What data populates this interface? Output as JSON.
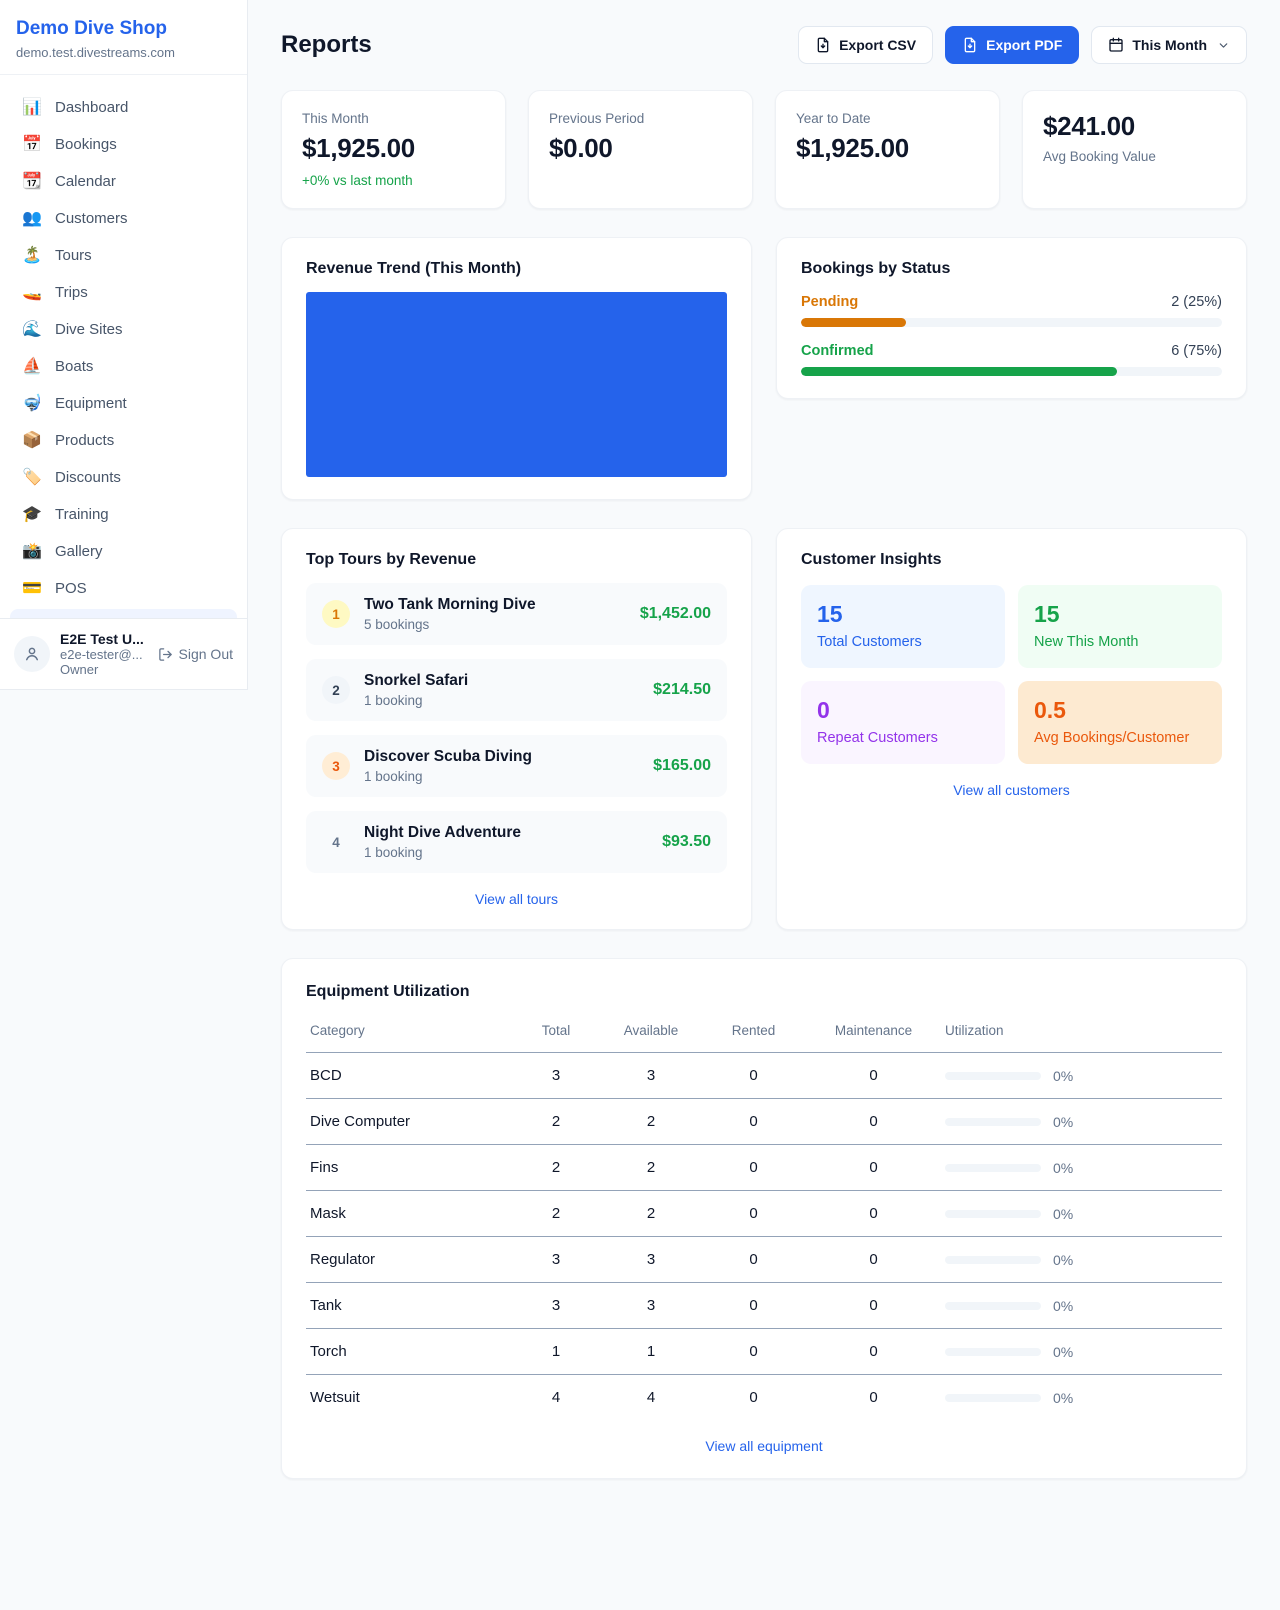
{
  "colors": {
    "primary": "#2563eb",
    "green": "#16a34a",
    "orange_pending": "#d97706",
    "orange_deep": "#ea580c",
    "purple": "#9333ea",
    "page_bg": "#f8fafc"
  },
  "sidebar": {
    "brand": {
      "title": "Demo Dive Shop",
      "domain": "demo.test.divestreams.com"
    },
    "nav": [
      {
        "icon": "📊",
        "label": "Dashboard"
      },
      {
        "icon": "📅",
        "label": "Bookings"
      },
      {
        "icon": "📆",
        "label": "Calendar"
      },
      {
        "icon": "👥",
        "label": "Customers"
      },
      {
        "icon": "🏝️",
        "label": "Tours"
      },
      {
        "icon": "🚤",
        "label": "Trips"
      },
      {
        "icon": "🌊",
        "label": "Dive Sites"
      },
      {
        "icon": "⛵",
        "label": "Boats"
      },
      {
        "icon": "🤿",
        "label": "Equipment"
      },
      {
        "icon": "📦",
        "label": "Products"
      },
      {
        "icon": "🏷️",
        "label": "Discounts"
      },
      {
        "icon": "🎓",
        "label": "Training"
      },
      {
        "icon": "📸",
        "label": "Gallery"
      },
      {
        "icon": "💳",
        "label": "POS"
      }
    ],
    "user": {
      "name": "E2E Test U...",
      "email": "e2e-tester@...",
      "role": "Owner",
      "sign_out": "Sign Out"
    }
  },
  "header": {
    "title": "Reports",
    "export_csv": "Export CSV",
    "export_pdf": "Export PDF",
    "period": "This Month"
  },
  "stats": [
    {
      "label": "This Month",
      "value": "$1,925.00",
      "delta": "+0% vs last month"
    },
    {
      "label": "Previous Period",
      "value": "$0.00"
    },
    {
      "label": "Year to Date",
      "value": "$1,925.00"
    },
    {
      "label": "Avg Booking Value",
      "value": "$241.00"
    }
  ],
  "revenue_trend": {
    "title": "Revenue Trend (This Month)"
  },
  "bookings_status": {
    "title": "Bookings by Status",
    "items": [
      {
        "label": "Pending",
        "value": "2 (25%)",
        "pct": 25,
        "color": "#d97706"
      },
      {
        "label": "Confirmed",
        "value": "6 (75%)",
        "pct": 75,
        "color": "#16a34a"
      }
    ]
  },
  "top_tours": {
    "title": "Top Tours by Revenue",
    "items": [
      {
        "rank": "1",
        "name": "Two Tank Morning Dive",
        "bookings": "5 bookings",
        "amount": "$1,452.00"
      },
      {
        "rank": "2",
        "name": "Snorkel Safari",
        "bookings": "1 booking",
        "amount": "$214.50"
      },
      {
        "rank": "3",
        "name": "Discover Scuba Diving",
        "bookings": "1 booking",
        "amount": "$165.00"
      },
      {
        "rank": "4",
        "name": "Night Dive Adventure",
        "bookings": "1 booking",
        "amount": "$93.50"
      }
    ],
    "view_all": "View all tours"
  },
  "customer_insights": {
    "title": "Customer Insights",
    "boxes": [
      {
        "value": "15",
        "label": "Total Customers"
      },
      {
        "value": "15",
        "label": "New This Month"
      },
      {
        "value": "0",
        "label": "Repeat Customers"
      },
      {
        "value": "0.5",
        "label": "Avg Bookings/Customer"
      }
    ],
    "view_all": "View all customers"
  },
  "equipment": {
    "title": "Equipment Utilization",
    "columns": [
      "Category",
      "Total",
      "Available",
      "Rented",
      "Maintenance",
      "Utilization"
    ],
    "rows": [
      {
        "category": "BCD",
        "total": "3",
        "available": "3",
        "rented": "0",
        "maintenance": "0",
        "utilization_pct": 0,
        "utilization": "0%"
      },
      {
        "category": "Dive Computer",
        "total": "2",
        "available": "2",
        "rented": "0",
        "maintenance": "0",
        "utilization_pct": 0,
        "utilization": "0%"
      },
      {
        "category": "Fins",
        "total": "2",
        "available": "2",
        "rented": "0",
        "maintenance": "0",
        "utilization_pct": 0,
        "utilization": "0%"
      },
      {
        "category": "Mask",
        "total": "2",
        "available": "2",
        "rented": "0",
        "maintenance": "0",
        "utilization_pct": 0,
        "utilization": "0%"
      },
      {
        "category": "Regulator",
        "total": "3",
        "available": "3",
        "rented": "0",
        "maintenance": "0",
        "utilization_pct": 0,
        "utilization": "0%"
      },
      {
        "category": "Tank",
        "total": "3",
        "available": "3",
        "rented": "0",
        "maintenance": "0",
        "utilization_pct": 0,
        "utilization": "0%"
      },
      {
        "category": "Torch",
        "total": "1",
        "available": "1",
        "rented": "0",
        "maintenance": "0",
        "utilization_pct": 0,
        "utilization": "0%"
      },
      {
        "category": "Wetsuit",
        "total": "4",
        "available": "4",
        "rented": "0",
        "maintenance": "0",
        "utilization_pct": 0,
        "utilization": "0%"
      }
    ],
    "view_all": "View all equipment"
  },
  "chart_data": [
    {
      "type": "bar",
      "title": "Revenue Trend (This Month)",
      "note": "single unlabeled bar filling the entire plot area, no axes or ticks visible",
      "bars": [
        {
          "label": "",
          "height_pct": 100
        }
      ],
      "bar_color": "#2563eb",
      "grid": false,
      "legend": false
    },
    {
      "type": "bar",
      "orientation": "horizontal",
      "title": "Bookings by Status",
      "categories": [
        "Pending",
        "Confirmed"
      ],
      "values": [
        2,
        6
      ],
      "percentages": [
        25,
        75
      ],
      "value_labels": [
        "2 (25%)",
        "6 (75%)"
      ],
      "colors": [
        "#d97706",
        "#16a34a"
      ],
      "xlim": [
        0,
        8
      ],
      "grid": false,
      "legend": false
    }
  ]
}
